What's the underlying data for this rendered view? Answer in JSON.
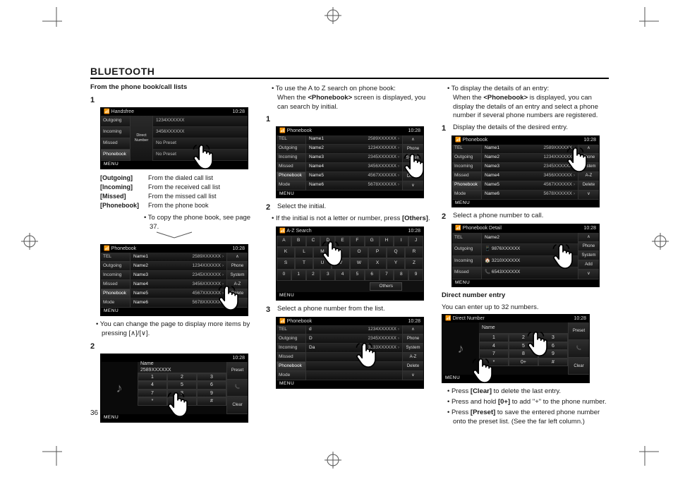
{
  "page": {
    "title": "BLUETOOTH",
    "number": "36"
  },
  "clock": "10:28",
  "menu": "MENU",
  "sideButtons": {
    "phone": "Phone",
    "system": "System",
    "az": "A-Z",
    "add": "Add",
    "delete": "Delete"
  },
  "tabs": {
    "tel": "TEL",
    "outgoing": "Outgoing",
    "incoming": "Incoming",
    "missed": "Missed",
    "phonebook": "Phonebook",
    "mode": "Mode"
  },
  "col1": {
    "subhead": "From the phone book/call lists",
    "step1": "1",
    "handsfree": {
      "title": "Handsfree",
      "direct": "Direct\nNumber",
      "rows": [
        "1234XXXXXX",
        "3456XXXXXX",
        "No Preset",
        "No Preset"
      ]
    },
    "defs": [
      {
        "k": "[Outgoing]",
        "v": "From the dialed call list"
      },
      {
        "k": "[Incoming]",
        "v": "From the received call list"
      },
      {
        "k": "[Missed]",
        "v": "From the missed call list"
      },
      {
        "k": "[Phonebook]",
        "v": "From the phone book"
      }
    ],
    "copyNote": "To copy the phone book, see page 37.",
    "pb": {
      "title": "Phonebook",
      "rows": [
        {
          "n": "Name1",
          "p": "2589XXXXXX"
        },
        {
          "n": "Name2",
          "p": "1234XXXXXX"
        },
        {
          "n": "Name3",
          "p": "2345XXXXXX"
        },
        {
          "n": "Name4",
          "p": "3456XXXXXX"
        },
        {
          "n": "Name5",
          "p": "4567XXXXXX"
        },
        {
          "n": "Name6",
          "p": "5678XXXXXX"
        }
      ]
    },
    "pageNote": "You can change the page to display more items by pressing [∧]/[∨].",
    "step2": "2",
    "dial": {
      "name": "Name",
      "num": "2589XXXXXX"
    }
  },
  "col2": {
    "intro1": "To use the A to Z search on phone book:",
    "intro2a": "When the ",
    "intro2b": "<Phonebook>",
    "intro2c": " screen is displayed, you can search by initial.",
    "step1": "1",
    "pb": {
      "title": "Phonebook",
      "rows": [
        {
          "n": "Name1",
          "p": "2589XXXXXX"
        },
        {
          "n": "Name2",
          "p": "1234XXXXXX"
        },
        {
          "n": "Name3",
          "p": "2345XXXXXX"
        },
        {
          "n": "Name4",
          "p": "3456XXXXXX"
        },
        {
          "n": "Name5",
          "p": "4567XXXXXX"
        },
        {
          "n": "Name6",
          "p": "5678XXXXXX"
        }
      ]
    },
    "step2": "2",
    "step2txt": "Select the initial.",
    "step2note1": "If the initial is not a letter or number, press ",
    "step2note2": "[Others]",
    "step2note3": ".",
    "az": {
      "title": "A-Z Search",
      "others": "Others"
    },
    "step3": "3",
    "step3txt": "Select a phone number from the list.",
    "list": {
      "title": "Phonebook",
      "rows": [
        {
          "n": "d",
          "p": "1234XXXXXX"
        },
        {
          "n": "D",
          "p": "2345XXXXXX"
        },
        {
          "n": "Da",
          "p": "3333XXXXXX"
        }
      ]
    }
  },
  "col3": {
    "intro1": "To display the details of an entry:",
    "intro2a": "When the ",
    "intro2b": "<Phonebook>",
    "intro2c": " is displayed, you can display the details of an entry and select a phone number if several phone numbers are registered.",
    "step1": "1",
    "step1txt": "Display the details of the desired entry.",
    "pb": {
      "title": "Phonebook",
      "rows": [
        {
          "n": "Name1",
          "p": "2589XXXXXX"
        },
        {
          "n": "Name2",
          "p": "1234XXXXXX"
        },
        {
          "n": "Name3",
          "p": "2345XXXXXX"
        },
        {
          "n": "Name4",
          "p": "3456XXXXXX"
        },
        {
          "n": "Name5",
          "p": "4567XXXXXX"
        },
        {
          "n": "Name6",
          "p": "5678XXXXXX"
        }
      ]
    },
    "step2": "2",
    "step2txt": "Select a phone number to call.",
    "detail": {
      "title": "Phonebook Detail",
      "name": "Name2",
      "rows": [
        "9876XXXXXX",
        "3210XXXXXX",
        "6543XXXXXX"
      ]
    },
    "dneHead": "Direct number entry",
    "dneTxt": "You can enter up to 32 numbers.",
    "dn": {
      "title": "Direct Number",
      "name": "Name",
      "clear": "Clear",
      "zero": "0+"
    },
    "notes": {
      "a1": "Press ",
      "a2": "[Clear]",
      "a3": " to delete the last entry.",
      "b1": "Press and hold ",
      "b2": "[0+]",
      "b3": " to add \"+\" to the phone number.",
      "c1": "Press ",
      "c2": "[Preset]",
      "c3": " to save the entered phone number onto the preset list. (See the far left column.)"
    }
  },
  "keypad": [
    [
      "1",
      "2",
      "3"
    ],
    [
      "4",
      "5",
      "6"
    ],
    [
      "7",
      "8",
      "9"
    ],
    [
      "*",
      "0+",
      "#"
    ]
  ],
  "az_rows": [
    [
      "A",
      "B",
      "C",
      "D",
      "E",
      "F",
      "G",
      "H",
      "I",
      "J"
    ],
    [
      "K",
      "L",
      "M",
      "N",
      "O",
      "P",
      "Q",
      "R"
    ],
    [
      "S",
      "T",
      "U",
      "V",
      "W",
      "X",
      "Y",
      "Z"
    ],
    [
      "0",
      "1",
      "2",
      "3",
      "4",
      "5",
      "6",
      "7",
      "8",
      "9"
    ]
  ]
}
